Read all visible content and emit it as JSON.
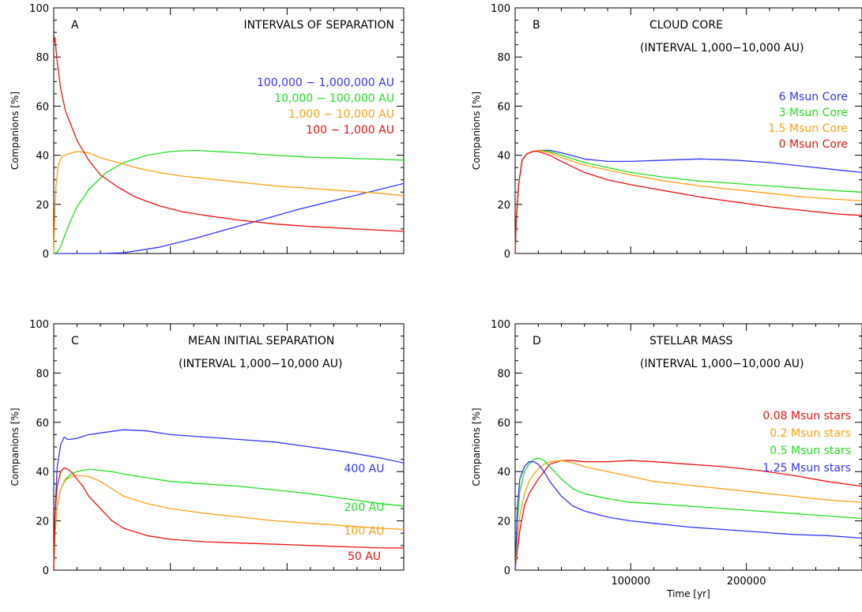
{
  "colors": {
    "blue": "#3333ff",
    "green": "#22dd22",
    "orange": "#ffa014",
    "red": "#ee1111",
    "axis": "#000000"
  },
  "chart_data": [
    {
      "type": "line",
      "panel": "A",
      "title": "INTERVALS OF SEPARATION",
      "subtitle": "",
      "xlabel": "",
      "ylabel": "Companions [%]",
      "xlim": [
        0,
        300000
      ],
      "ylim": [
        0,
        100
      ],
      "yticks": [
        "0",
        "20",
        "40",
        "60",
        "80",
        "100"
      ],
      "xticks": [],
      "series": [
        {
          "name": "100,000 − 1,000,000 AU",
          "color": "blue",
          "x": [
            0,
            20000,
            40000,
            60000,
            90000,
            120000,
            150000,
            180000,
            210000,
            240000,
            270000,
            300000
          ],
          "y": [
            0,
            0,
            0,
            0.3,
            2.5,
            6,
            10,
            14,
            18,
            21.5,
            25,
            28.5
          ]
        },
        {
          "name": "10,000 − 100,000 AU",
          "color": "green",
          "x": [
            0,
            3000,
            6000,
            10000,
            15000,
            20000,
            30000,
            45000,
            60000,
            80000,
            100000,
            120000,
            140000,
            160000,
            190000,
            220000,
            250000,
            280000,
            300000
          ],
          "y": [
            0,
            0.5,
            3,
            8,
            14,
            19,
            26,
            33,
            37,
            40,
            41.5,
            42,
            41.5,
            41,
            40,
            39.2,
            38.8,
            38.4,
            38
          ]
        },
        {
          "name": "1,000 − 10,000 AU",
          "color": "orange",
          "x": [
            0,
            1000,
            2000,
            4000,
            7000,
            12000,
            20000,
            30000,
            40000,
            55000,
            70000,
            90000,
            110000,
            130000,
            160000,
            190000,
            220000,
            250000,
            280000,
            300000
          ],
          "y": [
            0,
            18,
            28,
            36,
            39.5,
            40.5,
            41.5,
            41,
            39,
            37,
            35,
            33,
            31.5,
            30.5,
            29,
            27.5,
            26.5,
            25.5,
            24.5,
            23.5
          ]
        },
        {
          "name": "100 − 1,000 AU",
          "color": "red",
          "x": [
            0,
            1000,
            3000,
            6000,
            10000,
            15000,
            20000,
            30000,
            40000,
            55000,
            70000,
            90000,
            110000,
            130000,
            160000,
            190000,
            220000,
            250000,
            280000,
            300000
          ],
          "y": [
            85,
            88,
            78,
            67,
            58,
            52,
            46,
            38,
            32,
            27,
            23,
            19.5,
            17,
            15.5,
            13.5,
            12,
            11,
            10.2,
            9.5,
            9
          ]
        }
      ]
    },
    {
      "type": "line",
      "panel": "B",
      "title": "CLOUD CORE",
      "subtitle": "(INTERVAL 1,000−10,000 AU)",
      "xlabel": "",
      "ylabel": "Companions [%]",
      "xlim": [
        0,
        300000
      ],
      "ylim": [
        0,
        100
      ],
      "yticks": [
        "0",
        "20",
        "40",
        "60",
        "80",
        "100"
      ],
      "xticks": [],
      "series": [
        {
          "name": "6 Msun Core",
          "color": "blue",
          "x": [
            0,
            1000,
            3000,
            6000,
            10000,
            15000,
            20000,
            30000,
            40000,
            60000,
            80000,
            100000,
            130000,
            160000,
            190000,
            220000,
            250000,
            280000,
            300000
          ],
          "y": [
            0,
            14,
            28,
            38,
            40.5,
            41.5,
            42,
            42,
            41,
            38.5,
            37.5,
            37.5,
            38,
            38.5,
            38,
            37,
            35.5,
            34,
            33
          ]
        },
        {
          "name": "3 Msun Core",
          "color": "green",
          "x": [
            0,
            1000,
            3000,
            6000,
            10000,
            15000,
            20000,
            30000,
            40000,
            60000,
            80000,
            100000,
            130000,
            160000,
            190000,
            220000,
            250000,
            280000,
            300000
          ],
          "y": [
            0,
            14,
            28,
            38,
            40.5,
            41.5,
            42,
            41.5,
            40,
            37,
            35,
            33,
            31,
            29.5,
            28.5,
            27.5,
            26.5,
            25.5,
            25
          ]
        },
        {
          "name": "1.5 Msun Core",
          "color": "orange",
          "x": [
            0,
            1000,
            3000,
            6000,
            10000,
            15000,
            20000,
            30000,
            40000,
            60000,
            80000,
            100000,
            130000,
            160000,
            190000,
            220000,
            250000,
            280000,
            300000
          ],
          "y": [
            0,
            14,
            28,
            38,
            40.5,
            41.5,
            42,
            41,
            39,
            36,
            34,
            32,
            29.5,
            27.5,
            26,
            24.5,
            23,
            22,
            21.5
          ]
        },
        {
          "name": "0 Msun Core",
          "color": "red",
          "x": [
            0,
            1000,
            3000,
            6000,
            10000,
            15000,
            20000,
            30000,
            40000,
            60000,
            80000,
            100000,
            130000,
            160000,
            190000,
            220000,
            250000,
            280000,
            300000
          ],
          "y": [
            0,
            14,
            28,
            38,
            40.5,
            41.5,
            41.5,
            40,
            37.5,
            33,
            30,
            28,
            25.5,
            23,
            21,
            19,
            17.5,
            16,
            15.5
          ]
        }
      ]
    },
    {
      "type": "line",
      "panel": "C",
      "title": "MEAN INITIAL SEPARATION",
      "subtitle": "(INTERVAL 1,000−10,000 AU)",
      "xlabel": "",
      "ylabel": "Companions [%]",
      "xlim": [
        0,
        300000
      ],
      "ylim": [
        0,
        100
      ],
      "yticks": [
        "0",
        "20",
        "40",
        "60",
        "80",
        "100"
      ],
      "xticks": [],
      "series": [
        {
          "name": "400 AU",
          "color": "blue",
          "x": [
            0,
            1000,
            3000,
            6000,
            9000,
            12000,
            20000,
            30000,
            45000,
            60000,
            80000,
            100000,
            130000,
            160000,
            190000,
            220000,
            250000,
            280000,
            300000
          ],
          "y": [
            0,
            22,
            42,
            51,
            54,
            53,
            53.5,
            55,
            56,
            57,
            56.5,
            55,
            54,
            53,
            52,
            50,
            48,
            45.5,
            43.5
          ]
        },
        {
          "name": "200 AU",
          "color": "green",
          "x": [
            0,
            1000,
            3000,
            6000,
            10000,
            15000,
            20000,
            30000,
            40000,
            50000,
            60000,
            80000,
            100000,
            130000,
            160000,
            190000,
            220000,
            250000,
            280000,
            300000
          ],
          "y": [
            0,
            14,
            26,
            33,
            37,
            39,
            40,
            41,
            40.5,
            40,
            39,
            37.5,
            36,
            35,
            34,
            32.5,
            31,
            29,
            27,
            26
          ]
        },
        {
          "name": "100 AU",
          "color": "orange",
          "x": [
            0,
            1000,
            3000,
            6000,
            10000,
            15000,
            20000,
            30000,
            40000,
            50000,
            60000,
            80000,
            100000,
            130000,
            160000,
            190000,
            220000,
            250000,
            280000,
            300000
          ],
          "y": [
            0,
            15,
            26,
            33,
            36.5,
            38,
            38.5,
            38,
            36,
            33,
            30,
            27,
            25,
            23,
            21.5,
            20,
            19,
            18,
            17,
            16.5
          ]
        },
        {
          "name": "50 AU",
          "color": "red",
          "x": [
            0,
            1000,
            3000,
            6000,
            9000,
            12000,
            16000,
            20000,
            25000,
            30000,
            40000,
            50000,
            60000,
            80000,
            100000,
            130000,
            160000,
            190000,
            220000,
            250000,
            280000,
            300000
          ],
          "y": [
            0,
            22,
            34,
            40,
            41.5,
            41,
            39.5,
            37,
            34,
            30,
            25,
            20,
            17,
            14,
            12.5,
            11.5,
            11,
            10.5,
            10,
            9.5,
            9,
            9
          ]
        }
      ]
    },
    {
      "type": "line",
      "panel": "D",
      "title": "STELLAR MASS",
      "subtitle": "(INTERVAL 1,000−10,000 AU)",
      "xlabel": "Time [yr]",
      "ylabel": "Companions [%]",
      "xlim": [
        0,
        300000
      ],
      "ylim": [
        0,
        100
      ],
      "yticks": [
        "0",
        "20",
        "40",
        "60",
        "80",
        "100"
      ],
      "xticks": [
        "100000",
        "200000"
      ],
      "xtick_values": [
        100000,
        200000
      ],
      "series": [
        {
          "name": "0.08 Msun stars",
          "color": "red",
          "x": [
            0,
            2000,
            4000,
            8000,
            12000,
            16000,
            20000,
            25000,
            30000,
            40000,
            50000,
            60000,
            80000,
            100000,
            120000,
            150000,
            180000,
            210000,
            240000,
            270000,
            300000
          ],
          "y": [
            0,
            8,
            16,
            26,
            31,
            34,
            37,
            40,
            43,
            44.5,
            44.5,
            44,
            44,
            44.5,
            44,
            43,
            42,
            40.5,
            38.5,
            36,
            34
          ]
        },
        {
          "name": "0.2 Msun stars",
          "color": "orange",
          "x": [
            0,
            2000,
            4000,
            8000,
            12000,
            16000,
            20000,
            25000,
            30000,
            40000,
            50000,
            60000,
            80000,
            100000,
            120000,
            150000,
            180000,
            210000,
            240000,
            270000,
            300000
          ],
          "y": [
            0,
            12,
            22,
            31,
            36,
            39,
            41,
            43,
            44,
            44.5,
            43.5,
            42,
            40,
            38,
            36,
            34.5,
            33,
            31.5,
            30,
            28.5,
            27.5
          ]
        },
        {
          "name": "0.5 Msun stars",
          "color": "green",
          "x": [
            0,
            2000,
            4000,
            8000,
            12000,
            16000,
            20000,
            25000,
            30000,
            40000,
            50000,
            60000,
            80000,
            100000,
            120000,
            150000,
            180000,
            210000,
            240000,
            270000,
            300000
          ],
          "y": [
            0,
            20,
            32,
            40,
            43,
            45,
            45.5,
            44.5,
            42,
            37,
            33,
            31,
            29,
            27.5,
            27,
            26,
            25,
            24,
            23,
            22,
            21
          ]
        },
        {
          "name": "1.25 Msun stars",
          "color": "blue",
          "x": [
            0,
            2000,
            4000,
            8000,
            12000,
            16000,
            20000,
            25000,
            30000,
            40000,
            50000,
            60000,
            80000,
            100000,
            120000,
            150000,
            180000,
            210000,
            240000,
            270000,
            300000
          ],
          "y": [
            0,
            26,
            37,
            42,
            44,
            44,
            43,
            40,
            36,
            30,
            26,
            24,
            21.5,
            20,
            19,
            17.5,
            16.5,
            15.5,
            14.5,
            14,
            13
          ]
        }
      ]
    }
  ]
}
